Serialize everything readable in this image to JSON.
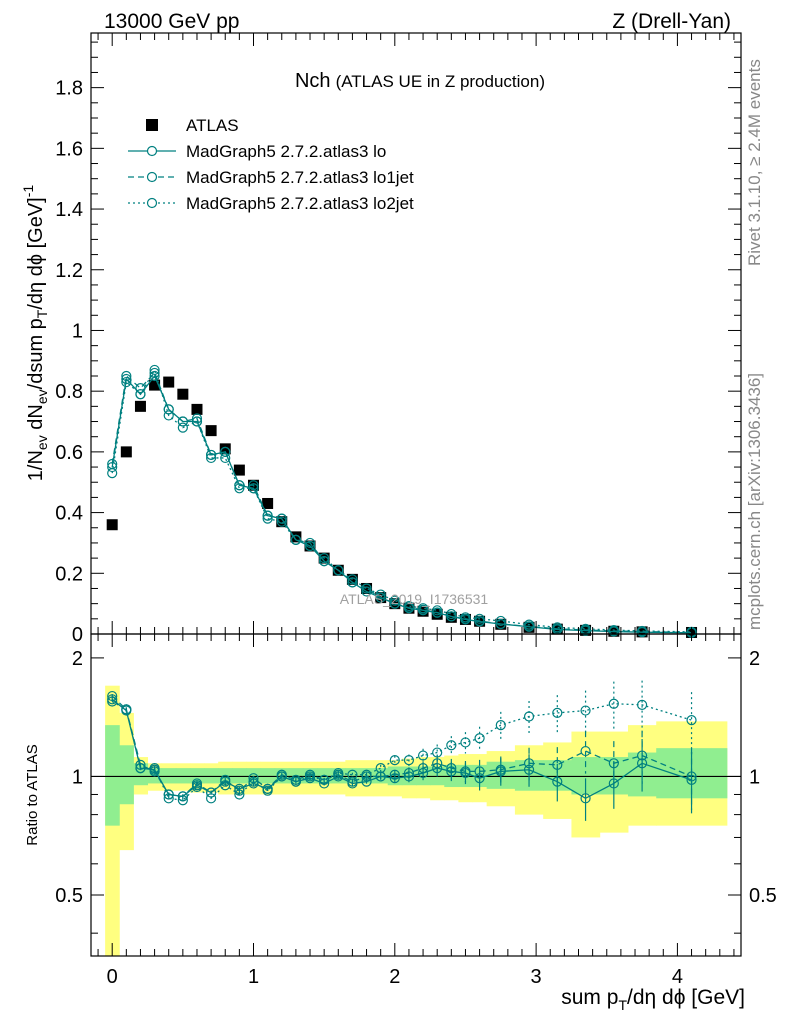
{
  "header": {
    "energy": "13000 GeV pp",
    "process": "Z (Drell-Yan)"
  },
  "side_labels": {
    "rivet": "Rivet 3.1.10, ≥ 2.4M events",
    "mcplots": "mcplots.cern.ch [arXiv:1306.3436]"
  },
  "watermark": "ATLAS_2019_I1736531",
  "chart_data": [
    {
      "type": "scatter",
      "title": "Nch",
      "subtitle": "(ATLAS UE in Z production)",
      "ylabel": "1/N_ev dN_ev/dsum p_T/dη dϕ [GeV]^-1",
      "xlim": [
        -0.15,
        4.45
      ],
      "ylim": [
        0,
        1.98
      ],
      "x_ticks": [
        0,
        1,
        2,
        3,
        4
      ],
      "y_ticks": [
        0.2,
        0.4,
        0.6,
        0.8,
        1,
        1.2,
        1.4,
        1.6,
        1.8
      ],
      "legend_position": "top-left",
      "x": [
        0,
        0.1,
        0.2,
        0.3,
        0.4,
        0.5,
        0.6,
        0.7,
        0.8,
        0.9,
        1.0,
        1.1,
        1.2,
        1.3,
        1.4,
        1.5,
        1.6,
        1.7,
        1.8,
        1.9,
        2.0,
        2.1,
        2.2,
        2.3,
        2.4,
        2.5,
        2.6,
        2.75,
        2.95,
        3.15,
        3.35,
        3.55,
        3.75,
        4.1
      ],
      "series": [
        {
          "name": "ATLAS",
          "style": "marker",
          "color": "#000000",
          "values": [
            0.36,
            0.6,
            0.75,
            0.82,
            0.83,
            0.79,
            0.74,
            0.67,
            0.61,
            0.54,
            0.49,
            0.43,
            0.37,
            0.32,
            0.29,
            0.25,
            0.21,
            0.18,
            0.15,
            0.12,
            0.1,
            0.085,
            0.075,
            0.065,
            0.055,
            0.048,
            0.042,
            0.032,
            0.022,
            0.016,
            0.012,
            0.009,
            0.007,
            0.005
          ]
        },
        {
          "name": "MadGraph5 2.7.2.atlas3 lo",
          "style": "solid",
          "color": "#008080",
          "values": [
            0.55,
            0.84,
            0.79,
            0.85,
            0.74,
            0.7,
            0.7,
            0.59,
            0.6,
            0.49,
            0.48,
            0.39,
            0.38,
            0.31,
            0.29,
            0.24,
            0.21,
            0.17,
            0.14,
            0.12,
            0.1,
            0.085,
            0.078,
            0.07,
            0.058,
            0.048,
            0.041,
            0.033,
            0.024,
            0.015,
            0.011,
            0.008,
            0.006,
            0.004
          ]
        },
        {
          "name": "MadGraph5 2.7.2.atlas3 lo1jet",
          "style": "dashed",
          "color": "#008080",
          "values": [
            0.56,
            0.85,
            0.81,
            0.86,
            0.74,
            0.7,
            0.71,
            0.59,
            0.6,
            0.49,
            0.49,
            0.39,
            0.38,
            0.31,
            0.3,
            0.24,
            0.21,
            0.17,
            0.15,
            0.12,
            0.1,
            0.087,
            0.08,
            0.071,
            0.058,
            0.05,
            0.043,
            0.033,
            0.025,
            0.017,
            0.013,
            0.01,
            0.008,
            0.005
          ]
        },
        {
          "name": "MadGraph5 2.7.2.atlas3 lo2jet",
          "style": "dotted",
          "color": "#008080",
          "values": [
            0.53,
            0.83,
            0.79,
            0.87,
            0.72,
            0.68,
            0.7,
            0.58,
            0.58,
            0.48,
            0.48,
            0.38,
            0.37,
            0.31,
            0.29,
            0.25,
            0.21,
            0.18,
            0.15,
            0.13,
            0.11,
            0.092,
            0.085,
            0.078,
            0.066,
            0.055,
            0.05,
            0.043,
            0.031,
            0.022,
            0.017,
            0.013,
            0.01,
            0.007
          ]
        }
      ]
    },
    {
      "type": "scatter",
      "ylabel": "Ratio to ATLAS",
      "xlabel": "sum p_T/dη dϕ [GeV]",
      "xlim": [
        -0.15,
        4.45
      ],
      "ylim": [
        0.35,
        2.3
      ],
      "y_scale": "log",
      "x_ticks": [
        0,
        1,
        2,
        3,
        4
      ],
      "y_ticks": [
        0.5,
        1,
        2
      ],
      "reference_line": 1,
      "band_edges": [
        -0.05,
        0.05,
        0.15,
        0.25,
        0.35,
        0.45,
        0.55,
        0.65,
        0.75,
        0.85,
        0.95,
        1.05,
        1.15,
        1.25,
        1.35,
        1.45,
        1.55,
        1.65,
        1.75,
        1.85,
        1.95,
        2.05,
        2.15,
        2.25,
        2.35,
        2.45,
        2.55,
        2.65,
        2.85,
        3.05,
        3.25,
        3.45,
        3.65,
        3.85,
        4.35
      ],
      "band_inner": [
        [
          0.75,
          1.35
        ],
        [
          0.85,
          1.2
        ],
        [
          0.95,
          1.08
        ],
        [
          0.96,
          1.05
        ],
        [
          0.96,
          1.05
        ],
        [
          0.96,
          1.05
        ],
        [
          0.96,
          1.05
        ],
        [
          0.96,
          1.05
        ],
        [
          0.96,
          1.05
        ],
        [
          0.96,
          1.05
        ],
        [
          0.96,
          1.05
        ],
        [
          0.96,
          1.05
        ],
        [
          0.96,
          1.05
        ],
        [
          0.96,
          1.05
        ],
        [
          0.96,
          1.05
        ],
        [
          0.96,
          1.05
        ],
        [
          0.96,
          1.05
        ],
        [
          0.96,
          1.05
        ],
        [
          0.96,
          1.05
        ],
        [
          0.96,
          1.05
        ],
        [
          0.95,
          1.06
        ],
        [
          0.95,
          1.06
        ],
        [
          0.95,
          1.06
        ],
        [
          0.95,
          1.06
        ],
        [
          0.94,
          1.07
        ],
        [
          0.94,
          1.07
        ],
        [
          0.94,
          1.07
        ],
        [
          0.93,
          1.09
        ],
        [
          0.92,
          1.1
        ],
        [
          0.92,
          1.1
        ],
        [
          0.9,
          1.12
        ],
        [
          0.9,
          1.12
        ],
        [
          0.89,
          1.15
        ],
        [
          0.88,
          1.18
        ]
      ],
      "band_outer": [
        [
          0.3,
          1.7
        ],
        [
          0.65,
          1.45
        ],
        [
          0.9,
          1.12
        ],
        [
          0.92,
          1.08
        ],
        [
          0.92,
          1.08
        ],
        [
          0.92,
          1.08
        ],
        [
          0.91,
          1.08
        ],
        [
          0.91,
          1.08
        ],
        [
          0.9,
          1.09
        ],
        [
          0.9,
          1.09
        ],
        [
          0.9,
          1.09
        ],
        [
          0.9,
          1.09
        ],
        [
          0.9,
          1.09
        ],
        [
          0.9,
          1.09
        ],
        [
          0.9,
          1.09
        ],
        [
          0.9,
          1.09
        ],
        [
          0.9,
          1.09
        ],
        [
          0.89,
          1.1
        ],
        [
          0.89,
          1.1
        ],
        [
          0.89,
          1.1
        ],
        [
          0.89,
          1.1
        ],
        [
          0.88,
          1.11
        ],
        [
          0.88,
          1.12
        ],
        [
          0.87,
          1.12
        ],
        [
          0.87,
          1.13
        ],
        [
          0.86,
          1.14
        ],
        [
          0.86,
          1.14
        ],
        [
          0.84,
          1.16
        ],
        [
          0.8,
          1.2
        ],
        [
          0.78,
          1.22
        ],
        [
          0.7,
          1.3
        ],
        [
          0.72,
          1.3
        ],
        [
          0.75,
          1.35
        ],
        [
          0.75,
          1.38
        ]
      ],
      "x": [
        0,
        0.1,
        0.2,
        0.3,
        0.4,
        0.5,
        0.6,
        0.7,
        0.8,
        0.9,
        1.0,
        1.1,
        1.2,
        1.3,
        1.4,
        1.5,
        1.6,
        1.7,
        1.8,
        1.9,
        2.0,
        2.1,
        2.2,
        2.3,
        2.4,
        2.5,
        2.6,
        2.75,
        2.95,
        3.15,
        3.35,
        3.55,
        3.75,
        4.1
      ],
      "series": [
        {
          "name": "MadGraph5 2.7.2.atlas3 lo",
          "style": "solid",
          "color": "#008080",
          "values": [
            1.57,
            1.47,
            1.05,
            1.04,
            0.9,
            0.89,
            0.95,
            0.91,
            0.97,
            0.93,
            0.96,
            0.93,
            1.0,
            0.97,
            0.99,
            0.96,
            1.0,
            0.96,
            0.97,
            1.0,
            0.99,
            1.0,
            1.02,
            1.05,
            1.03,
            1.02,
            0.99,
            1.03,
            1.04,
            0.97,
            0.88,
            0.96,
            1.08,
            0.98
          ]
        },
        {
          "name": "MadGraph5 2.7.2.atlas3 lo1jet",
          "style": "dashed",
          "color": "#008080",
          "values": [
            1.6,
            1.48,
            1.07,
            1.03,
            0.9,
            0.89,
            0.96,
            0.91,
            0.98,
            0.92,
            0.99,
            0.93,
            1.01,
            0.98,
            1.01,
            0.98,
            1.01,
            0.97,
            1.0,
            1.0,
            1.01,
            1.02,
            1.05,
            1.08,
            1.05,
            1.03,
            1.03,
            1.04,
            1.08,
            1.07,
            1.16,
            1.08,
            1.13,
            1.0
          ]
        },
        {
          "name": "MadGraph5 2.7.2.atlas3 lo2jet",
          "style": "dotted",
          "color": "#008080",
          "values": [
            1.55,
            1.48,
            1.05,
            1.05,
            0.88,
            0.87,
            0.94,
            0.88,
            0.95,
            0.9,
            0.97,
            0.92,
            1.0,
            0.97,
            1.0,
            0.98,
            1.02,
            1.01,
            1.01,
            1.05,
            1.1,
            1.1,
            1.13,
            1.15,
            1.2,
            1.22,
            1.25,
            1.35,
            1.42,
            1.45,
            1.47,
            1.53,
            1.52,
            1.39
          ]
        }
      ]
    }
  ]
}
